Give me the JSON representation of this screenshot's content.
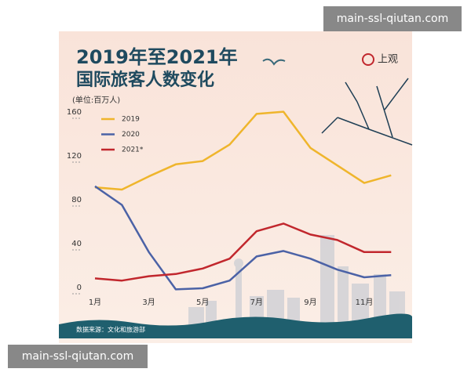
{
  "watermark": [
    "main-ssl-qiutan.com",
    "main-ssl-qiutan.com"
  ],
  "logo": "上观",
  "chart_data": {
    "type": "line",
    "title": "2019年至2021年",
    "subtitle": "国际旅客人数变化",
    "y_label": "(单位:百万人)",
    "source": "数据来源：文化和旅游部",
    "categories": [
      "1月",
      null,
      "3月",
      null,
      "5月",
      null,
      "7月",
      null,
      "9月",
      null,
      "11月",
      null
    ],
    "series": [
      {
        "name": "2019",
        "color": "#efb52c",
        "values": [
          97,
          95,
          107,
          118,
          121,
          136,
          164,
          166,
          133,
          117,
          101,
          108
        ]
      },
      {
        "name": "2020",
        "color": "#4b62a6",
        "values": [
          98,
          81,
          38,
          4,
          5,
          12,
          34,
          39,
          32,
          22,
          15,
          17
        ]
      },
      {
        "name": "2021*",
        "color": "#c1272d",
        "values": [
          14,
          12,
          16,
          18,
          23,
          32,
          57,
          64,
          54,
          49,
          38,
          38
        ]
      }
    ],
    "ylim": [
      0,
      170
    ],
    "yticks": [
      0,
      40,
      80,
      120,
      160
    ],
    "legend": "upper left"
  }
}
